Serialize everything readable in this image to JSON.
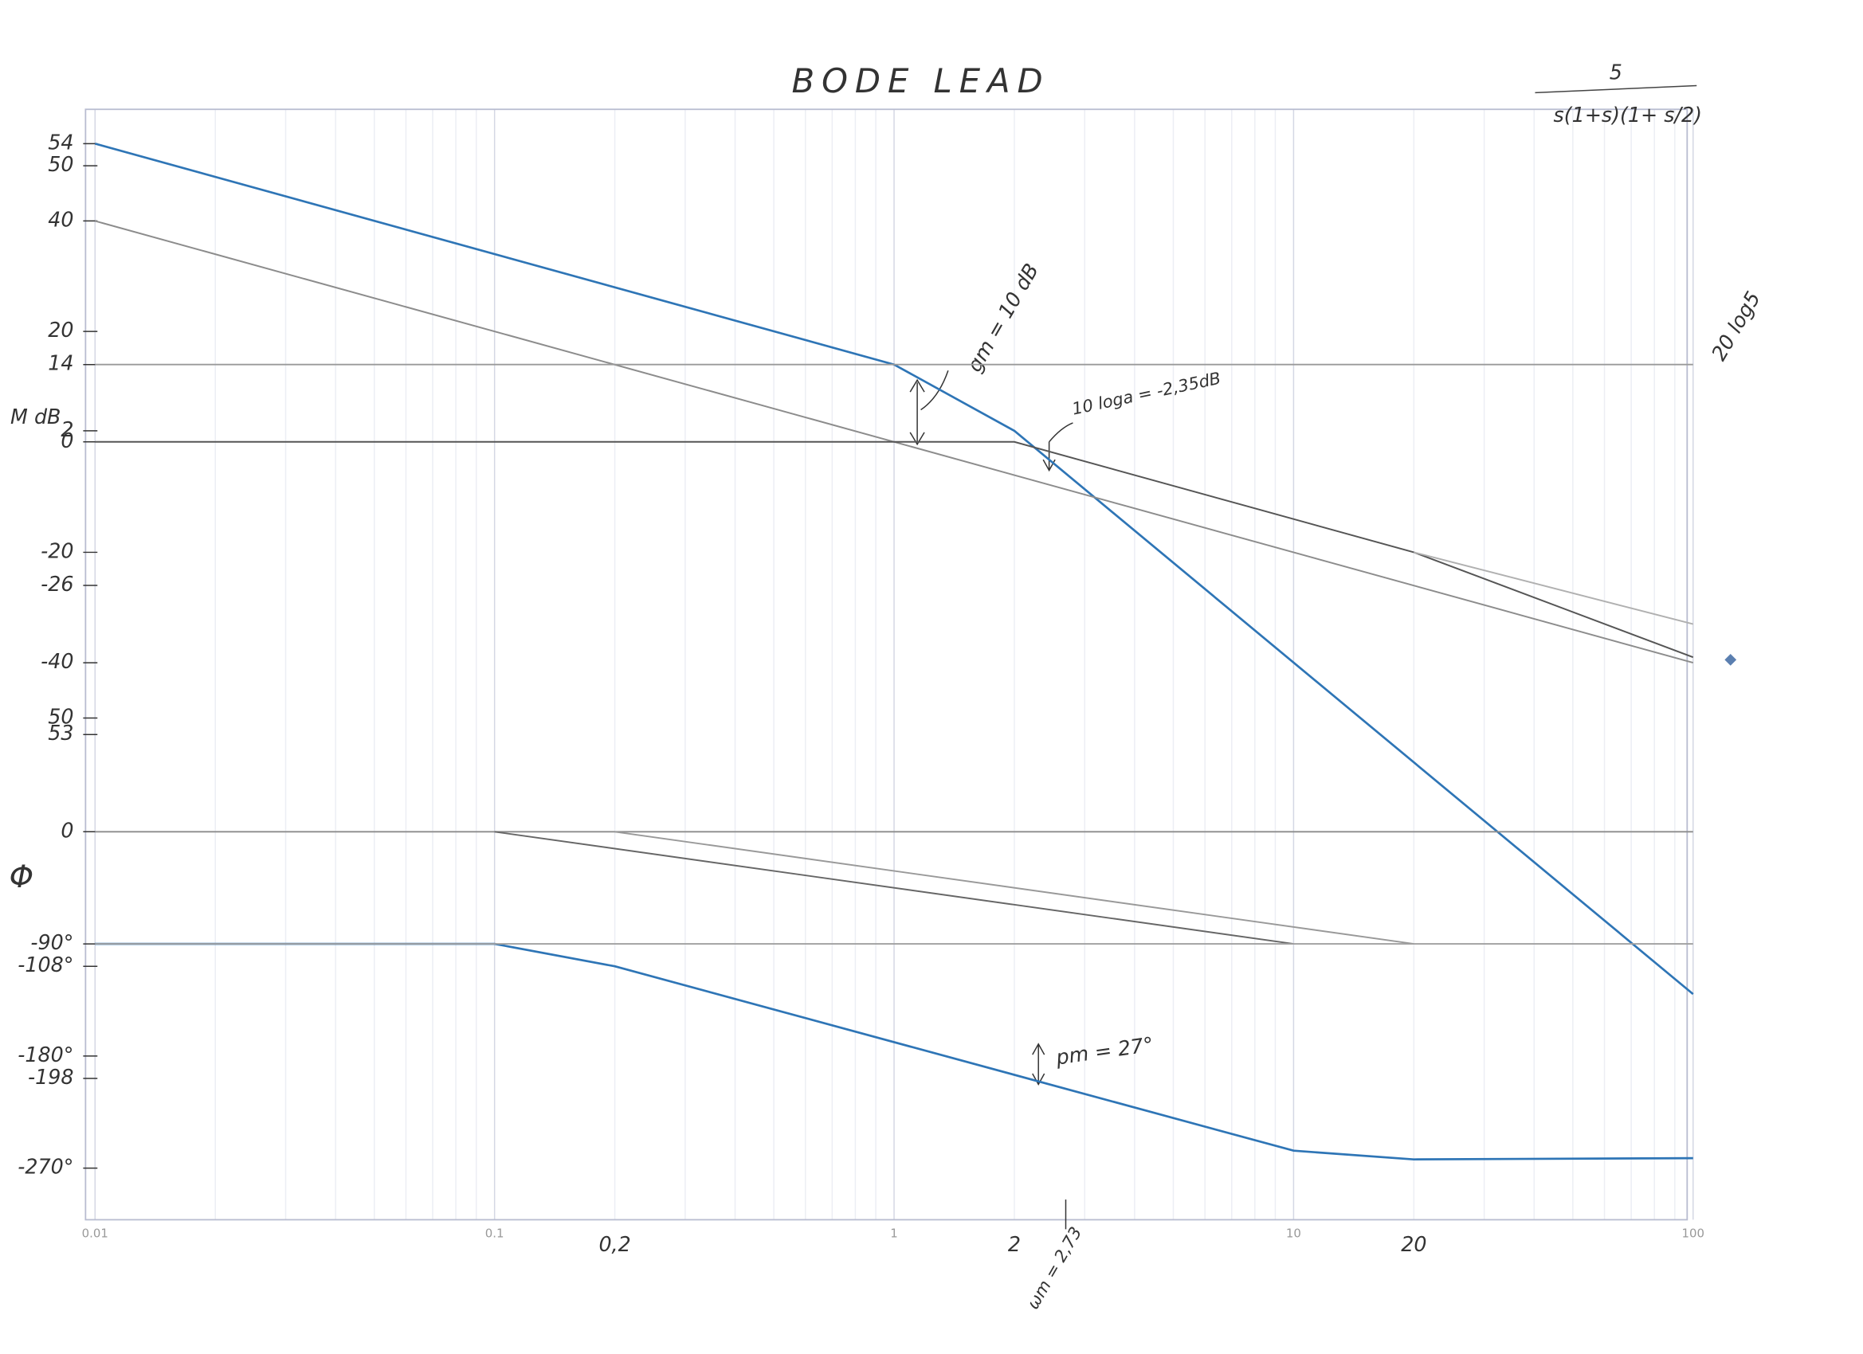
{
  "chart_data": [
    {
      "type": "line",
      "title": "BODE LEAD",
      "transfer_function": {
        "numerator": "5",
        "denominator": "s(1+s)(1+ s/2)"
      },
      "y_label": "M dB",
      "x_log": true,
      "xlim": [
        0.01,
        100
      ],
      "ylim": [
        -60,
        60
      ],
      "yticks": [
        54,
        50,
        40,
        20,
        14,
        2,
        0,
        -20,
        -26,
        -40,
        {
          "value": -50,
          "label": "50"
        },
        {
          "value": -53,
          "label": "53"
        }
      ],
      "annotations": [
        {
          "text": "gm = 10 dB"
        },
        {
          "text": "10 loga = -2,35dB"
        },
        {
          "text": "20 log5"
        }
      ],
      "series": [
        {
          "color": "#2e75b6",
          "x": [
            0.01,
            1,
            2,
            100
          ],
          "values": [
            54,
            14,
            2,
            -100
          ]
        },
        {
          "color": "#8c8c8c",
          "x": [
            0.01,
            100
          ],
          "values": [
            40,
            -40
          ]
        },
        {
          "color": "#555555",
          "x": [
            0.01,
            2,
            20,
            100
          ],
          "values": [
            0,
            0,
            -20,
            -39
          ]
        },
        {
          "color": "#b0b0b0",
          "x": [
            20,
            100
          ],
          "values": [
            -20,
            -33
          ]
        },
        {
          "color": "#9a9a9a",
          "x": [
            0.01,
            100
          ],
          "values": [
            14,
            14
          ]
        }
      ]
    },
    {
      "type": "line",
      "y_label": "Φ",
      "x_log": true,
      "xlim": [
        0.01,
        100
      ],
      "xticks": [
        0.01,
        0.1,
        1,
        10,
        100
      ],
      "grid": true,
      "minor_grid": true,
      "hand_xticks": [
        {
          "value": 0.2,
          "label": "0,2"
        },
        {
          "value": 2,
          "label": "2"
        },
        {
          "value": 20,
          "label": "20"
        }
      ],
      "ylim": [
        -310,
        47
      ],
      "yticks": [
        0,
        {
          "value": -90,
          "label": "-90°"
        },
        {
          "value": -108,
          "label": "-108°"
        },
        {
          "value": -180,
          "label": "-180°"
        },
        -198,
        {
          "value": -270,
          "label": "-270°"
        }
      ],
      "annotations": [
        {
          "text": "pm = 27°"
        },
        {
          "text": "ωm = 2,73"
        }
      ],
      "series": [
        {
          "color": "#2e75b6",
          "x": [
            0.01,
            0.1,
            0.2,
            10,
            20,
            100
          ],
          "values": [
            -90,
            -90,
            -108,
            -256,
            -263,
            -262
          ]
        },
        {
          "color": "#8c8c8c",
          "x": [
            0.01,
            100
          ],
          "values": [
            0,
            0
          ]
        },
        {
          "color": "#666666",
          "x": [
            0.1,
            10
          ],
          "values": [
            0,
            -90
          ]
        },
        {
          "color": "#999999",
          "x": [
            0.2,
            20
          ],
          "values": [
            0,
            -90
          ]
        },
        {
          "color": "#a0a0a0",
          "x": [
            0.01,
            100
          ],
          "values": [
            -90,
            -90
          ]
        }
      ]
    }
  ]
}
